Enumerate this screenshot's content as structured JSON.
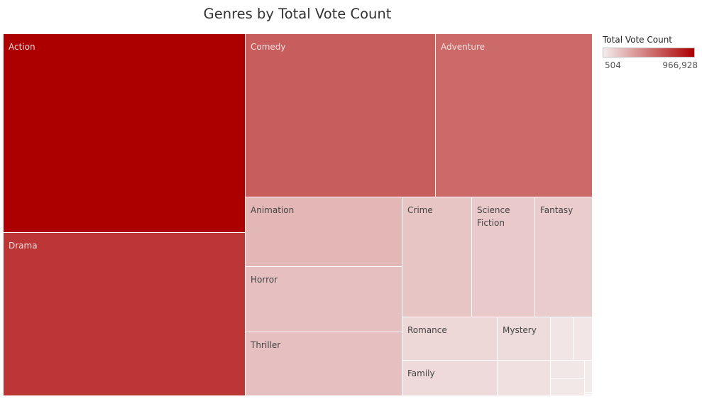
{
  "chart_data": {
    "type": "treemap",
    "title": "Genres by Total Vote Count",
    "measure": "Total Vote Count",
    "color_scale": {
      "min": 504,
      "max": 966928,
      "min_label": "504",
      "max_label": "966,928",
      "low_color": "#f4eded",
      "high_color": "#ac0000"
    },
    "items": [
      {
        "label": "Action",
        "value": 966928
      },
      {
        "label": "Drama",
        "value": 747000
      },
      {
        "label": "Comedy",
        "value": 586000
      },
      {
        "label": "Adventure",
        "value": 533000
      },
      {
        "label": "Animation",
        "value": 219000
      },
      {
        "label": "Horror",
        "value": 184000
      },
      {
        "label": "Thriller",
        "value": 182000
      },
      {
        "label": "Crime",
        "value": 163000
      },
      {
        "label": "Science\nFiction",
        "value": 148000
      },
      {
        "label": "Fantasy",
        "value": 137000
      },
      {
        "label": "Romance",
        "value": 89000
      },
      {
        "label": "Mystery",
        "value": 75000
      },
      {
        "label": "Family",
        "value": 76000
      },
      {
        "label": "",
        "value": 55000
      },
      {
        "label": "",
        "value": 33000
      },
      {
        "label": "",
        "value": 29000
      },
      {
        "label": "",
        "value": 27000
      },
      {
        "label": "",
        "value": 21000
      },
      {
        "label": "",
        "value": 12000
      },
      {
        "label": "",
        "value": 4000
      },
      {
        "label": "",
        "value": 504
      }
    ]
  }
}
